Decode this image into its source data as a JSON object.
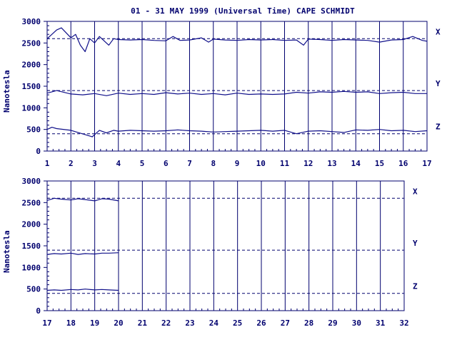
{
  "title": "01 - 31 MAY 1999 (Universal Time) CAPE SCHMIDT",
  "colors": {
    "ink": "#00006e",
    "trace": "#10108a",
    "axis": "#00006e"
  },
  "chart_data": [
    {
      "type": "line",
      "ylabel": "Nanotesla",
      "xlabel": "",
      "xlim": [
        1,
        17
      ],
      "ylim": [
        0,
        3000
      ],
      "x_ticks": [
        "1",
        "2",
        "3",
        "4",
        "5",
        "6",
        "7",
        "8",
        "9",
        "10",
        "11",
        "12",
        "13",
        "14",
        "15",
        "16",
        "17"
      ],
      "y_ticks": [
        "0",
        "500",
        "1000",
        "1500",
        "2000",
        "2500",
        "3000"
      ],
      "grid": "vertical day lines",
      "baselines": [
        {
          "name": "X",
          "value": 2600
        },
        {
          "name": "Y",
          "value": 1400
        },
        {
          "name": "Z",
          "value": 400
        }
      ],
      "series": [
        {
          "name": "X",
          "x": [
            1.0,
            1.2,
            1.4,
            1.6,
            2.0,
            2.2,
            2.4,
            2.6,
            2.8,
            3.0,
            3.2,
            3.4,
            3.6,
            3.8,
            4.0,
            4.5,
            5.0,
            5.5,
            6.0,
            6.3,
            6.6,
            7.0,
            7.5,
            7.8,
            8.0,
            8.5,
            9.0,
            9.5,
            10.0,
            10.5,
            11.0,
            11.5,
            11.8,
            12.0,
            12.5,
            13.0,
            13.5,
            14.0,
            14.5,
            15.0,
            15.5,
            16.0,
            16.4,
            16.8,
            17.0
          ],
          "y": [
            2600,
            2700,
            2800,
            2850,
            2620,
            2700,
            2450,
            2300,
            2600,
            2500,
            2650,
            2550,
            2450,
            2600,
            2580,
            2570,
            2580,
            2560,
            2550,
            2650,
            2560,
            2570,
            2620,
            2520,
            2590,
            2570,
            2560,
            2580,
            2570,
            2580,
            2560,
            2570,
            2450,
            2590,
            2580,
            2560,
            2580,
            2570,
            2560,
            2520,
            2570,
            2580,
            2650,
            2560,
            2540
          ]
        },
        {
          "name": "Y",
          "x": [
            1.0,
            1.2,
            1.4,
            2.0,
            2.5,
            3.0,
            3.5,
            4.0,
            4.5,
            5.0,
            5.5,
            6.0,
            6.5,
            7.0,
            7.5,
            8.0,
            8.5,
            9.0,
            9.5,
            10.0,
            10.5,
            11.0,
            11.5,
            12.0,
            12.5,
            13.0,
            13.5,
            14.0,
            14.5,
            15.0,
            15.5,
            16.0,
            16.5,
            17.0
          ],
          "y": [
            1340,
            1370,
            1400,
            1320,
            1300,
            1330,
            1280,
            1340,
            1310,
            1330,
            1310,
            1350,
            1320,
            1340,
            1310,
            1330,
            1300,
            1340,
            1310,
            1320,
            1310,
            1320,
            1360,
            1340,
            1370,
            1360,
            1380,
            1360,
            1370,
            1330,
            1350,
            1360,
            1330,
            1330
          ]
        },
        {
          "name": "Z",
          "x": [
            1.0,
            1.2,
            1.4,
            2.0,
            2.3,
            2.6,
            2.9,
            3.2,
            3.5,
            3.8,
            4.0,
            4.5,
            5.0,
            5.5,
            6.0,
            6.5,
            7.0,
            7.5,
            8.0,
            8.5,
            9.0,
            9.5,
            10.0,
            10.5,
            11.0,
            11.5,
            12.0,
            12.5,
            13.0,
            13.5,
            14.0,
            14.5,
            15.0,
            15.5,
            16.0,
            16.5,
            17.0
          ],
          "y": [
            500,
            550,
            520,
            480,
            430,
            380,
            330,
            480,
            420,
            480,
            460,
            480,
            470,
            460,
            470,
            490,
            470,
            460,
            440,
            450,
            460,
            470,
            480,
            460,
            480,
            400,
            460,
            470,
            450,
            430,
            490,
            480,
            500,
            470,
            480,
            450,
            470
          ]
        }
      ]
    },
    {
      "type": "line",
      "ylabel": "Nanotesla",
      "xlabel": "",
      "xlim": [
        17,
        32
      ],
      "ylim": [
        0,
        3000
      ],
      "x_ticks": [
        "17",
        "18",
        "19",
        "20",
        "21",
        "22",
        "23",
        "24",
        "25",
        "26",
        "27",
        "28",
        "29",
        "30",
        "31",
        "32"
      ],
      "y_ticks": [
        "0",
        "500",
        "1000",
        "1500",
        "2000",
        "2500",
        "3000"
      ],
      "grid": "vertical day lines",
      "baselines": [
        {
          "name": "X",
          "value": 2600
        },
        {
          "name": "Y",
          "value": 1400
        },
        {
          "name": "Z",
          "value": 400
        }
      ],
      "series": [
        {
          "name": "X",
          "x": [
            17.0,
            17.3,
            17.6,
            18.0,
            18.3,
            18.6,
            19.0,
            19.3,
            19.6,
            20.0
          ],
          "y": [
            2550,
            2600,
            2580,
            2560,
            2590,
            2570,
            2540,
            2590,
            2580,
            2540
          ]
        },
        {
          "name": "Y",
          "x": [
            17.0,
            17.3,
            17.6,
            18.0,
            18.3,
            18.6,
            19.0,
            19.3,
            19.6,
            20.0
          ],
          "y": [
            1300,
            1320,
            1310,
            1330,
            1300,
            1320,
            1310,
            1330,
            1330,
            1340
          ]
        },
        {
          "name": "Z",
          "x": [
            17.0,
            17.3,
            17.6,
            18.0,
            18.3,
            18.6,
            19.0,
            19.3,
            19.6,
            20.0
          ],
          "y": [
            470,
            480,
            470,
            490,
            480,
            500,
            480,
            490,
            480,
            470
          ]
        }
      ]
    }
  ]
}
